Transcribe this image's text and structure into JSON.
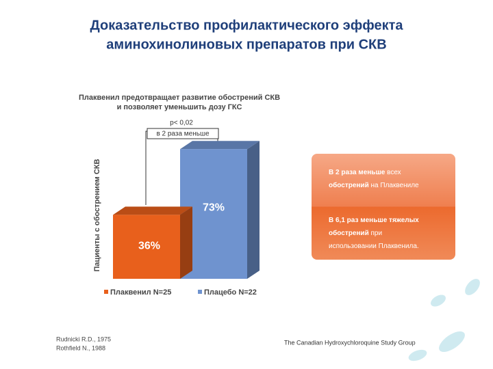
{
  "slide_title": [
    "Доказательство профилактического эффекта",
    "аминохинолиновых препаратов при СКВ"
  ],
  "chart_data": {
    "type": "bar",
    "title": [
      "Плаквенил предотвращает развитие обострений СКВ",
      "и позволяет уменьшить дозу ГКС"
    ],
    "ylabel": "Пациенты с обострением СКВ",
    "categories": [
      "Плаквенил N=25",
      "Плацебо N=22"
    ],
    "values": [
      36,
      73
    ],
    "value_labels": [
      "36%",
      "73%"
    ],
    "colors": [
      "#e8601c",
      "#6f93cf"
    ],
    "annotations": [
      "p< 0,02",
      "в 2 раза меньше"
    ]
  },
  "callout": [
    [
      [
        {
          "text": "В 2 раза меньше",
          "bold": true
        },
        {
          "text": " всех",
          "bold": false
        }
      ],
      [
        {
          "text": "обострений",
          "bold": true
        },
        {
          "text": " на Плаквениле",
          "bold": false
        }
      ]
    ],
    [
      [
        {
          "text": "В 6,1 раз меньше тяжелых",
          "bold": true
        }
      ],
      [
        {
          "text": "обострений",
          "bold": true
        },
        {
          "text": " при",
          "bold": false
        }
      ],
      [
        {
          "text": "использовании Плаквенила.",
          "bold": false
        }
      ]
    ]
  ],
  "references": [
    "Rudnicki R.D., 1975",
    "Rothfield N., 1988"
  ],
  "source": "The Canadian Hydroxychloroquine Study Group"
}
